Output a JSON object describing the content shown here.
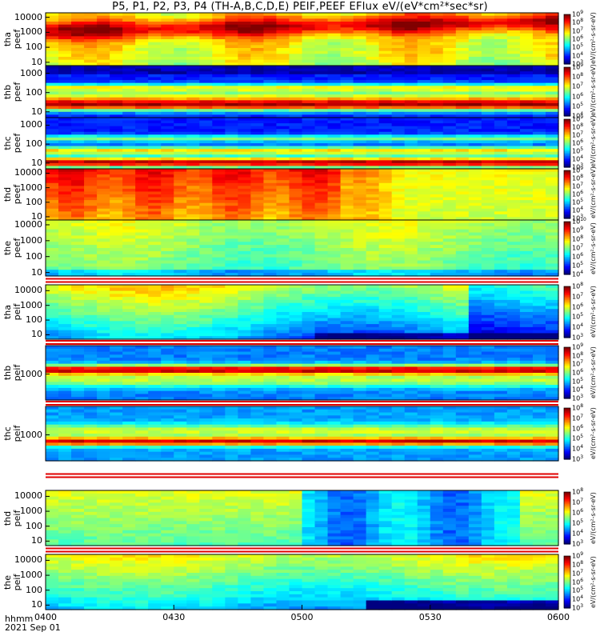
{
  "title": "P5, P1, P2, P3, P4 (TH-A,B,C,D,E) PEIF,PEEF EFlux eV/(eV*cm²*sec*sr)",
  "footer": {
    "time_label": "hhmm",
    "date_label": "2021 Sep 01"
  },
  "chart_data": {
    "type": "heatmap",
    "x_tick_labels": [
      "0400",
      "0430",
      "0500",
      "0530",
      "0600"
    ],
    "x_ticks_minutes": [
      0,
      30,
      60,
      90,
      120
    ],
    "y_scale": "log",
    "panels": [
      {
        "label_top": "tha",
        "label_bot": "peef",
        "yticks": [
          "10000",
          "1000",
          "100",
          "10"
        ],
        "ytick_values": [
          10000,
          1000,
          100,
          10
        ],
        "ylim": [
          6,
          20000
        ],
        "colorbar": {
          "min_exp": 3,
          "max_exp": 9,
          "unit": "eV/(cm²-s-sr-eV)"
        }
      },
      {
        "label_top": "thb",
        "label_bot": "peef",
        "yticks": [
          "1000",
          "100",
          "10"
        ],
        "ytick_values": [
          1000,
          100,
          10
        ],
        "ylim": [
          5,
          2500
        ],
        "colorbar": {
          "min_exp": 4,
          "max_exp": 9,
          "unit": "eV/(cm²-s-sr-eV)"
        }
      },
      {
        "label_top": "thc",
        "label_bot": "peef",
        "yticks": [
          "1000",
          "100",
          "10"
        ],
        "ytick_values": [
          1000,
          100,
          10
        ],
        "ylim": [
          5,
          2500
        ],
        "colorbar": {
          "min_exp": 3,
          "max_exp": 9,
          "unit": "eV/(cm²-s-sr-eV)"
        }
      },
      {
        "label_top": "thd",
        "label_bot": "peef",
        "yticks": [
          "10000",
          "1000",
          "100",
          "10"
        ],
        "ytick_values": [
          10000,
          1000,
          100,
          10
        ],
        "ylim": [
          6,
          20000
        ],
        "colorbar": {
          "min_exp": 3,
          "max_exp": 9,
          "unit": "eV/(cm²-s-sr-eV)"
        }
      },
      {
        "label_top": "the",
        "label_bot": "peef",
        "yticks": [
          "10000",
          "1000",
          "100",
          "10"
        ],
        "ytick_values": [
          10000,
          1000,
          100,
          10
        ],
        "ylim": [
          6,
          20000
        ],
        "colorbar": {
          "min_exp": 4,
          "max_exp": 10,
          "unit": "eV/(cm²-s-sr-eV)"
        }
      },
      {
        "label_top": "tha",
        "label_bot": "peif",
        "yticks": [
          "10000",
          "1000",
          "100",
          "10"
        ],
        "ytick_values": [
          10000,
          1000,
          100,
          10
        ],
        "ylim": [
          5,
          25000
        ],
        "colorbar": {
          "min_exp": 3,
          "max_exp": 8,
          "unit": "eV/(cm²-s-sr-eV)"
        }
      },
      {
        "label_top": "thb",
        "label_bot": "peif",
        "yticks": [
          "1000"
        ],
        "ytick_values": [
          1000
        ],
        "ylim": [
          150,
          8000
        ],
        "colorbar": {
          "min_exp": 3,
          "max_exp": 9,
          "unit": "eV/(cm²-s-sr-eV)"
        }
      },
      {
        "label_top": "thc",
        "label_bot": "peif",
        "yticks": [
          "1000"
        ],
        "ytick_values": [
          1000
        ],
        "ylim": [
          150,
          8000
        ],
        "colorbar": {
          "min_exp": 3,
          "max_exp": 8,
          "unit": "eV/(cm²-s-sr-eV)"
        }
      },
      {
        "label_top": "thd",
        "label_bot": "peif",
        "yticks": [
          "10000",
          "1000",
          "100",
          "10"
        ],
        "ytick_values": [
          10000,
          1000,
          100,
          10
        ],
        "ylim": [
          5,
          25000
        ],
        "colorbar": {
          "min_exp": 3,
          "max_exp": 8,
          "unit": "eV/(cm²-s-sr-eV)"
        }
      },
      {
        "label_top": "the",
        "label_bot": "peif",
        "yticks": [
          "10000",
          "1000",
          "100",
          "10"
        ],
        "ytick_values": [
          10000,
          1000,
          100,
          10
        ],
        "ylim": [
          5,
          25000
        ],
        "colorbar": {
          "min_exp": 3,
          "max_exp": 9,
          "unit": "eV/(cm²-s-sr-eV)"
        }
      }
    ]
  }
}
